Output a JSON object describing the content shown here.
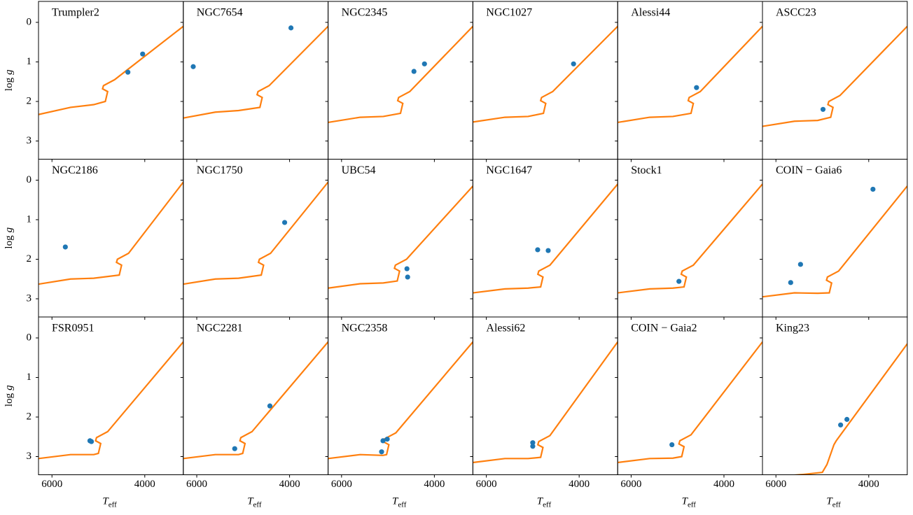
{
  "chart_data": [
    {
      "type": "scatter",
      "title": "Trumpler2",
      "x": [
        4364,
        4046
      ],
      "values": [
        1.26,
        0.8
      ],
      "color": "#1f77b4",
      "line": {
        "color": "#ff7f0e",
        "x": [
          6290,
          5600,
          5100,
          4850,
          4800,
          4910,
          4890,
          4650,
          3170
        ],
        "y": [
          2.33,
          2.15,
          2.08,
          2.0,
          1.75,
          1.68,
          1.6,
          1.45,
          0.1
        ]
      },
      "xlim": [
        6290,
        3170
      ],
      "ylim": [
        3.46,
        -0.53
      ],
      "xticks": [
        6000,
        4000
      ],
      "yticks": [
        0,
        1,
        2,
        3
      ],
      "xtick_labels": false,
      "ytick_labels": true,
      "ylabel": [
        "log",
        "g"
      ]
    },
    {
      "type": "scatter",
      "title": "NGC7654",
      "x": [
        6076,
        3970
      ],
      "values": [
        1.12,
        0.14
      ],
      "color": "#1f77b4",
      "line": {
        "color": "#ff7f0e",
        "x": [
          6290,
          5600,
          5100,
          4640,
          4590,
          4700,
          4680,
          4440,
          3170
        ],
        "y": [
          2.42,
          2.27,
          2.23,
          2.15,
          1.9,
          1.83,
          1.75,
          1.6,
          0.1
        ]
      },
      "xlim": [
        6290,
        3170
      ],
      "ylim": [
        3.46,
        -0.53
      ],
      "xticks": [
        6000,
        4000
      ],
      "yticks": [
        0,
        1,
        2,
        3
      ],
      "xtick_labels": false,
      "ytick_labels": false
    },
    {
      "type": "scatter",
      "title": "NGC2345",
      "x": [
        4440,
        4213
      ],
      "values": [
        1.24,
        1.05
      ],
      "color": "#1f77b4",
      "line": {
        "color": "#ff7f0e",
        "x": [
          6290,
          5600,
          5100,
          4730,
          4680,
          4790,
          4770,
          4530,
          3170
        ],
        "y": [
          2.53,
          2.4,
          2.38,
          2.3,
          2.05,
          1.98,
          1.9,
          1.75,
          0.1
        ]
      },
      "xlim": [
        6290,
        3170
      ],
      "ylim": [
        3.46,
        -0.53
      ],
      "xticks": [
        6000,
        4000
      ],
      "yticks": [
        0,
        1,
        2,
        3
      ],
      "xtick_labels": false,
      "ytick_labels": false
    },
    {
      "type": "scatter",
      "title": "NGC1027",
      "x": [
        4121
      ],
      "values": [
        1.05
      ],
      "color": "#1f77b4",
      "line": {
        "color": "#ff7f0e",
        "x": [
          6290,
          5600,
          5100,
          4770,
          4720,
          4830,
          4810,
          4570,
          3170
        ],
        "y": [
          2.52,
          2.4,
          2.38,
          2.3,
          2.05,
          1.98,
          1.9,
          1.75,
          0.1
        ]
      },
      "xlim": [
        6290,
        3170
      ],
      "ylim": [
        3.46,
        -0.53
      ],
      "xticks": [
        6000,
        4000
      ],
      "yticks": [
        0,
        1,
        2,
        3
      ],
      "xtick_labels": false,
      "ytick_labels": false
    },
    {
      "type": "scatter",
      "title": "Alessi44",
      "x": [
        4591
      ],
      "values": [
        1.65
      ],
      "color": "#1f77b4",
      "line": {
        "color": "#ff7f0e",
        "x": [
          6290,
          5600,
          5100,
          4710,
          4660,
          4770,
          4750,
          4510,
          3170
        ],
        "y": [
          2.53,
          2.4,
          2.38,
          2.3,
          2.05,
          1.98,
          1.9,
          1.75,
          0.1
        ]
      },
      "xlim": [
        6290,
        3170
      ],
      "ylim": [
        3.46,
        -0.53
      ],
      "xticks": [
        6000,
        4000
      ],
      "yticks": [
        0,
        1,
        2,
        3
      ],
      "xtick_labels": false,
      "ytick_labels": false
    },
    {
      "type": "scatter",
      "title": "ASCC23",
      "x": [
        4985
      ],
      "values": [
        2.2
      ],
      "color": "#1f77b4",
      "line": {
        "color": "#ff7f0e",
        "x": [
          6290,
          5600,
          5100,
          4820,
          4770,
          4880,
          4860,
          4620,
          3170
        ],
        "y": [
          2.63,
          2.5,
          2.48,
          2.4,
          2.15,
          2.08,
          2.0,
          1.85,
          0.1
        ]
      },
      "xlim": [
        6290,
        3170
      ],
      "ylim": [
        3.46,
        -0.53
      ],
      "xticks": [
        6000,
        4000
      ],
      "yticks": [
        0,
        1,
        2,
        3
      ],
      "xtick_labels": false,
      "ytick_labels": false
    },
    {
      "type": "scatter",
      "title": "NGC2186",
      "x": [
        5712
      ],
      "values": [
        1.69
      ],
      "color": "#1f77b4",
      "line": {
        "color": "#ff7f0e",
        "x": [
          6290,
          5600,
          5100,
          4550,
          4500,
          4610,
          4590,
          4350,
          3170
        ],
        "y": [
          2.63,
          2.5,
          2.48,
          2.4,
          2.15,
          2.08,
          2.0,
          1.85,
          0.05
        ]
      },
      "xlim": [
        6290,
        3170
      ],
      "ylim": [
        3.46,
        -0.53
      ],
      "xticks": [
        6000,
        4000
      ],
      "yticks": [
        0,
        1,
        2,
        3
      ],
      "xtick_labels": false,
      "ytick_labels": true,
      "ylabel": [
        "log",
        "g"
      ]
    },
    {
      "type": "scatter",
      "title": "NGC1750",
      "x": [
        4106
      ],
      "values": [
        1.07
      ],
      "color": "#1f77b4",
      "line": {
        "color": "#ff7f0e",
        "x": [
          6290,
          5600,
          5100,
          4610,
          4560,
          4670,
          4650,
          4410,
          3170
        ],
        "y": [
          2.63,
          2.5,
          2.48,
          2.4,
          2.15,
          2.08,
          2.0,
          1.85,
          0.05
        ]
      },
      "xlim": [
        6290,
        3170
      ],
      "ylim": [
        3.46,
        -0.53
      ],
      "xticks": [
        6000,
        4000
      ],
      "yticks": [
        0,
        1,
        2,
        3
      ],
      "xtick_labels": false,
      "ytick_labels": false
    },
    {
      "type": "scatter",
      "title": "UBC54",
      "x": [
        4591,
        4576
      ],
      "values": [
        2.24,
        2.45
      ],
      "color": "#1f77b4",
      "line": {
        "color": "#ff7f0e",
        "x": [
          6290,
          5600,
          5100,
          4800,
          4750,
          4860,
          4840,
          4600,
          3170
        ],
        "y": [
          2.73,
          2.62,
          2.6,
          2.55,
          2.3,
          2.23,
          2.15,
          2.0,
          0.15
        ]
      },
      "xlim": [
        6290,
        3170
      ],
      "ylim": [
        3.46,
        -0.53
      ],
      "xticks": [
        6000,
        4000
      ],
      "yticks": [
        0,
        1,
        2,
        3
      ],
      "xtick_labels": false,
      "ytick_labels": false
    },
    {
      "type": "scatter",
      "title": "NGC1647",
      "x": [
        4894,
        4667
      ],
      "values": [
        1.76,
        1.78
      ],
      "color": "#1f77b4",
      "line": {
        "color": "#ff7f0e",
        "x": [
          6290,
          5600,
          5100,
          4830,
          4780,
          4890,
          4870,
          4630,
          3170
        ],
        "y": [
          2.85,
          2.75,
          2.73,
          2.7,
          2.45,
          2.38,
          2.3,
          2.15,
          0.1
        ]
      },
      "xlim": [
        6290,
        3170
      ],
      "ylim": [
        3.46,
        -0.53
      ],
      "xticks": [
        6000,
        4000
      ],
      "yticks": [
        0,
        1,
        2,
        3
      ],
      "xtick_labels": false,
      "ytick_labels": false
    },
    {
      "type": "scatter",
      "title": "Stock1",
      "x": [
        4970
      ],
      "values": [
        2.56
      ],
      "color": "#1f77b4",
      "line": {
        "color": "#ff7f0e",
        "x": [
          6290,
          5600,
          5100,
          4860,
          4810,
          4920,
          4900,
          4660,
          3170
        ],
        "y": [
          2.85,
          2.75,
          2.73,
          2.7,
          2.45,
          2.38,
          2.3,
          2.15,
          0.1
        ]
      },
      "xlim": [
        6290,
        3170
      ],
      "ylim": [
        3.46,
        -0.53
      ],
      "xticks": [
        6000,
        4000
      ],
      "yticks": [
        0,
        1,
        2,
        3
      ],
      "xtick_labels": false,
      "ytick_labels": false
    },
    {
      "type": "scatter",
      "title": "COIN − Gaia6",
      "x": [
        5682,
        5470,
        3909
      ],
      "values": [
        2.59,
        2.13,
        0.23
      ],
      "color": "#1f77b4",
      "line": {
        "color": "#ff7f0e",
        "x": [
          6290,
          5600,
          5100,
          4850,
          4800,
          4910,
          4890,
          4650,
          3170
        ],
        "y": [
          2.95,
          2.85,
          2.86,
          2.85,
          2.6,
          2.53,
          2.45,
          2.3,
          0.15
        ]
      },
      "xlim": [
        6290,
        3170
      ],
      "ylim": [
        3.46,
        -0.53
      ],
      "xticks": [
        6000,
        4000
      ],
      "yticks": [
        0,
        1,
        2,
        3
      ],
      "xtick_labels": false,
      "ytick_labels": false
    },
    {
      "type": "scatter",
      "title": "FSR0951",
      "x": [
        5182,
        5150
      ],
      "values": [
        2.6,
        2.62
      ],
      "color": "#1f77b4",
      "line": {
        "color": "#ff7f0e",
        "x": [
          6290,
          5600,
          5100,
          5000,
          4950,
          5060,
          5040,
          4800,
          3170
        ],
        "y": [
          3.05,
          2.95,
          2.95,
          2.92,
          2.67,
          2.6,
          2.52,
          2.37,
          0.1
        ]
      },
      "xlim": [
        6290,
        3170
      ],
      "ylim": [
        3.46,
        -0.53
      ],
      "xticks": [
        6000,
        4000
      ],
      "yticks": [
        0,
        1,
        2,
        3
      ],
      "xtick_labels": true,
      "ytick_labels": true,
      "ylabel": [
        "log",
        "g"
      ],
      "xlabel": [
        "T",
        "eff"
      ]
    },
    {
      "type": "scatter",
      "title": "NGC2281",
      "x": [
        5182,
        4424
      ],
      "values": [
        2.8,
        1.72
      ],
      "color": "#1f77b4",
      "line": {
        "color": "#ff7f0e",
        "x": [
          6290,
          5600,
          5100,
          5010,
          4960,
          5070,
          5050,
          4810,
          3170
        ],
        "y": [
          3.05,
          2.95,
          2.95,
          2.92,
          2.67,
          2.6,
          2.52,
          2.37,
          0.1
        ]
      },
      "xlim": [
        6290,
        3170
      ],
      "ylim": [
        3.46,
        -0.53
      ],
      "xticks": [
        6000,
        4000
      ],
      "yticks": [
        0,
        1,
        2,
        3
      ],
      "xtick_labels": true,
      "ytick_labels": false,
      "xlabel": [
        "T",
        "eff"
      ]
    },
    {
      "type": "scatter",
      "title": "NGC2358",
      "x": [
        5137,
        5107,
        5016
      ],
      "values": [
        2.88,
        2.6,
        2.56
      ],
      "color": "#1f77b4",
      "line": {
        "color": "#ff7f0e",
        "x": [
          6290,
          5600,
          5110,
          5030,
          4980,
          5090,
          5070,
          4830,
          3170
        ],
        "y": [
          3.05,
          2.95,
          2.97,
          2.95,
          2.7,
          2.63,
          2.55,
          2.4,
          0.1
        ]
      },
      "xlim": [
        6290,
        3170
      ],
      "ylim": [
        3.46,
        -0.53
      ],
      "xticks": [
        6000,
        4000
      ],
      "yticks": [
        0,
        1,
        2,
        3
      ],
      "xtick_labels": true,
      "ytick_labels": false,
      "xlabel": [
        "T",
        "eff"
      ]
    },
    {
      "type": "scatter",
      "title": "Alessi62",
      "x": [
        5000,
        5000
      ],
      "values": [
        2.65,
        2.74
      ],
      "color": "#1f77b4",
      "line": {
        "color": "#ff7f0e",
        "x": [
          6290,
          5600,
          5100,
          4830,
          4780,
          4890,
          4870,
          4630,
          3170
        ],
        "y": [
          3.15,
          3.05,
          3.05,
          3.02,
          2.77,
          2.7,
          2.62,
          2.47,
          0.1
        ]
      },
      "xlim": [
        6290,
        3170
      ],
      "ylim": [
        3.46,
        -0.53
      ],
      "xticks": [
        6000,
        4000
      ],
      "yticks": [
        0,
        1,
        2,
        3
      ],
      "xtick_labels": true,
      "ytick_labels": false,
      "xlabel": [
        "T",
        "eff"
      ]
    },
    {
      "type": "scatter",
      "title": "COIN − Gaia2",
      "x": [
        5121
      ],
      "values": [
        2.7
      ],
      "color": "#1f77b4",
      "line": {
        "color": "#ff7f0e",
        "x": [
          6290,
          5600,
          5100,
          4910,
          4860,
          4970,
          4950,
          4710,
          3170
        ],
        "y": [
          3.15,
          3.05,
          3.04,
          3.0,
          2.75,
          2.68,
          2.6,
          2.45,
          0.1
        ]
      },
      "xlim": [
        6290,
        3170
      ],
      "ylim": [
        3.46,
        -0.53
      ],
      "xticks": [
        6000,
        4000
      ],
      "yticks": [
        0,
        1,
        2,
        3
      ],
      "xtick_labels": true,
      "ytick_labels": false,
      "xlabel": [
        "T",
        "eff"
      ]
    },
    {
      "type": "scatter",
      "title": "King23",
      "x": [
        4606,
        4470
      ],
      "values": [
        2.2,
        2.06
      ],
      "color": "#1f77b4",
      "line": {
        "color": "#ff7f0e",
        "x": [
          5900,
          5400,
          5000,
          4900,
          4750,
          4700,
          3170
        ],
        "y": [
          3.5,
          3.45,
          3.4,
          3.2,
          2.7,
          2.6,
          0.15
        ]
      },
      "xlim": [
        6290,
        3170
      ],
      "ylim": [
        3.46,
        -0.53
      ],
      "xticks": [
        6000,
        4000
      ],
      "yticks": [
        0,
        1,
        2,
        3
      ],
      "xtick_labels": true,
      "ytick_labels": false,
      "xlabel": [
        "T",
        "eff"
      ]
    }
  ]
}
